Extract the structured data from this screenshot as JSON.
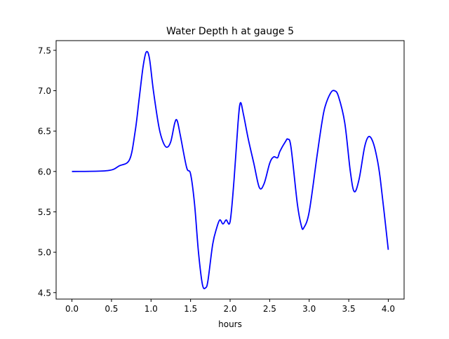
{
  "chart_data": {
    "type": "line",
    "title": "Water Depth h at gauge 5",
    "xlabel": "hours",
    "ylabel": "",
    "xlim": [
      -0.2,
      4.2
    ],
    "ylim": [
      4.42,
      7.62
    ],
    "xticks": [
      0.0,
      0.5,
      1.0,
      1.5,
      2.0,
      2.5,
      3.0,
      3.5,
      4.0
    ],
    "xtick_labels": [
      "0.0",
      "0.5",
      "1.0",
      "1.5",
      "2.0",
      "2.5",
      "3.0",
      "3.5",
      "4.0"
    ],
    "yticks": [
      4.5,
      5.0,
      5.5,
      6.0,
      6.5,
      7.0,
      7.5
    ],
    "ytick_labels": [
      "4.5",
      "5.0",
      "5.5",
      "6.0",
      "6.5",
      "7.0",
      "7.5"
    ],
    "grid": false,
    "series": [
      {
        "name": "h",
        "color": "#0000ff",
        "x": [
          0,
          0.45,
          0.6,
          0.73,
          0.8,
          0.85,
          0.9,
          0.94,
          0.98,
          1.03,
          1.1,
          1.15,
          1.2,
          1.25,
          1.3,
          1.33,
          1.37,
          1.45,
          1.5,
          1.55,
          1.6,
          1.65,
          1.69,
          1.72,
          1.78,
          1.83,
          1.87,
          1.91,
          1.95,
          2.0,
          2.05,
          2.1,
          2.13,
          2.17,
          2.23,
          2.3,
          2.37,
          2.43,
          2.5,
          2.55,
          2.6,
          2.63,
          2.7,
          2.73,
          2.77,
          2.85,
          2.9,
          2.93,
          3.0,
          3.1,
          3.16,
          3.2,
          3.27,
          3.32,
          3.37,
          3.45,
          3.52,
          3.57,
          3.63,
          3.7,
          3.75,
          3.8,
          3.85,
          3.9,
          4.0
        ],
        "y": [
          6.0,
          6.01,
          6.07,
          6.15,
          6.5,
          6.9,
          7.3,
          7.48,
          7.4,
          7.0,
          6.55,
          6.37,
          6.3,
          6.37,
          6.6,
          6.63,
          6.45,
          6.05,
          5.97,
          5.6,
          5.0,
          4.6,
          4.56,
          4.65,
          5.1,
          5.3,
          5.4,
          5.35,
          5.4,
          5.38,
          5.9,
          6.6,
          6.85,
          6.7,
          6.4,
          6.1,
          5.8,
          5.85,
          6.1,
          6.18,
          6.17,
          6.25,
          6.37,
          6.4,
          6.3,
          5.6,
          5.33,
          5.3,
          5.5,
          6.2,
          6.6,
          6.8,
          6.97,
          7.0,
          6.93,
          6.6,
          6.0,
          5.75,
          5.9,
          6.3,
          6.43,
          6.38,
          6.2,
          5.9,
          5.03
        ]
      }
    ]
  }
}
